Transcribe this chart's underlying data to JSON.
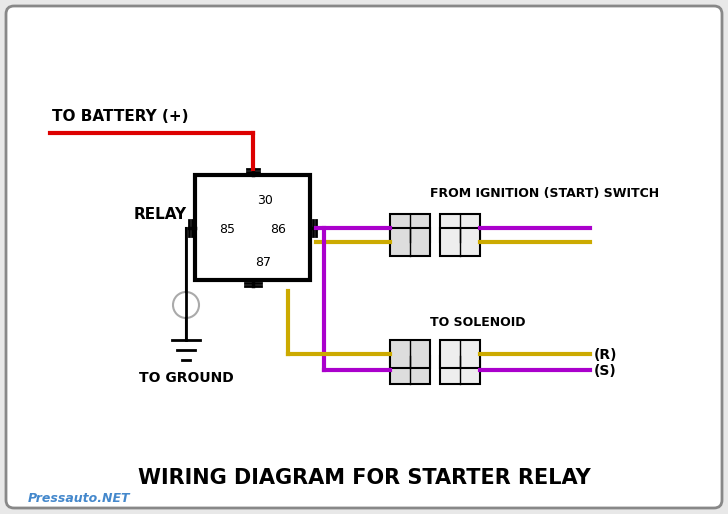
{
  "title": "WIRING DIAGRAM FOR STARTER RELAY",
  "title_fontsize": 15,
  "bg_color": "#e8e8e8",
  "inner_bg": "#ffffff",
  "border_color": "#888888",
  "watermark": "Pressauto.NET",
  "watermark_color": "#4488cc",
  "label_battery": "TO BATTERY (+)",
  "label_ground": "TO GROUND",
  "label_ignition": "FROM IGNITION (START) SWITCH",
  "label_solenoid": "TO SOLENOID",
  "label_R": "(R)",
  "label_S": "(S)",
  "colors": {
    "red": "#dd0000",
    "purple": "#aa00cc",
    "yellow": "#ccaa00",
    "black": "#000000",
    "white": "#ffffff",
    "gray": "#aaaaaa",
    "connector": "#cccccc"
  }
}
